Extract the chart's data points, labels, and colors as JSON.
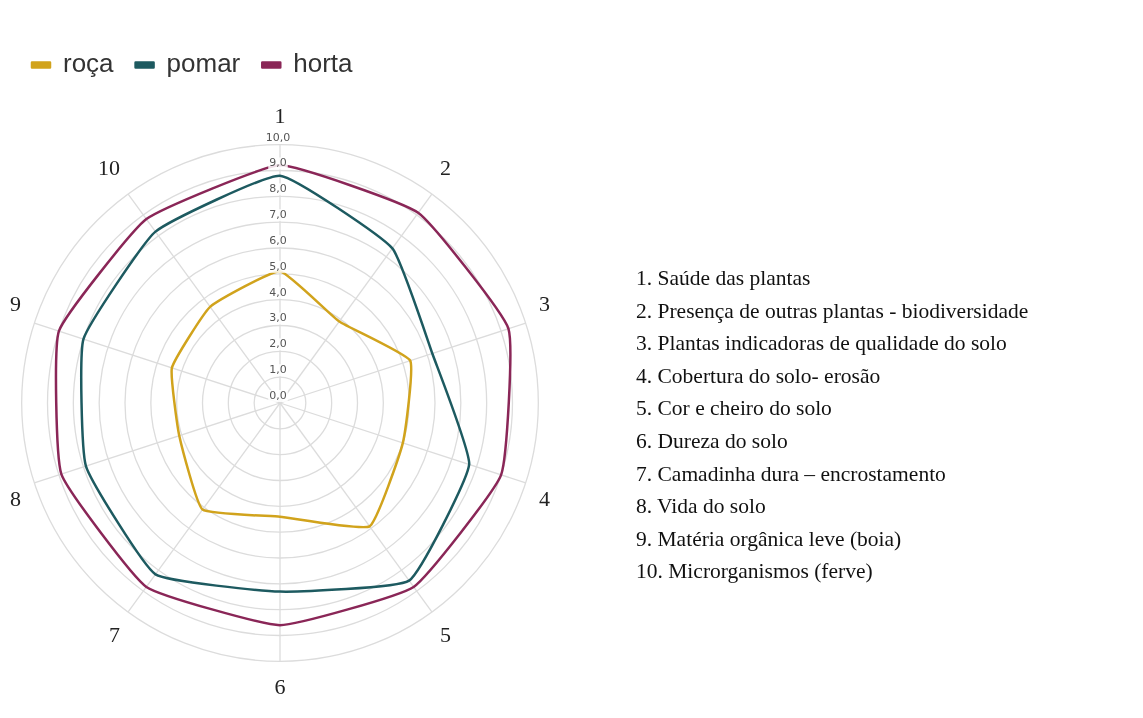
{
  "chart_data": {
    "type": "radar",
    "categories": [
      "1",
      "2",
      "3",
      "4",
      "5",
      "6",
      "7",
      "8",
      "9",
      "10"
    ],
    "series": [
      {
        "name": "roça",
        "color": "#d1a31c",
        "values": [
          5.1,
          3.9,
          5.3,
          5.0,
          5.9,
          4.4,
          5.1,
          4.1,
          4.4,
          4.6
        ]
      },
      {
        "name": "pomar",
        "color": "#1d5a60",
        "values": [
          8.8,
          7.4,
          6.2,
          7.7,
          8.5,
          7.3,
          8.2,
          7.9,
          8.0,
          8.2
        ]
      },
      {
        "name": "horta",
        "color": "#8a2657",
        "values": [
          9.2,
          9.1,
          9.3,
          9.0,
          8.8,
          8.6,
          8.8,
          8.9,
          9.0,
          8.8
        ]
      }
    ],
    "ylim": [
      0,
      10
    ],
    "yticks": [
      {
        "value": 0,
        "label": "0,0"
      },
      {
        "value": 1,
        "label": "1,0"
      },
      {
        "value": 2,
        "label": "2,0"
      },
      {
        "value": 3,
        "label": "3,0"
      },
      {
        "value": 4,
        "label": "4,0"
      },
      {
        "value": 5,
        "label": "5,0"
      },
      {
        "value": 6,
        "label": "6,0"
      },
      {
        "value": 7,
        "label": "7,0"
      },
      {
        "value": 8,
        "label": "8,0"
      },
      {
        "value": 9,
        "label": "9,0"
      },
      {
        "value": 10,
        "label": "10,0"
      }
    ],
    "grid": true,
    "legend": "top left",
    "marker": "none",
    "line_style": "solid",
    "annotations": [
      "1. Saúde das plantas",
      "2. Presença de outras plantas - biodiversidade",
      "3. Plantas indicadoras de qualidade do solo",
      "4. Cobertura do solo- erosão",
      "5. Cor e cheiro do solo",
      "6. Dureza do solo",
      "7. Camadinha dura – encrostamento",
      "8. Vida do solo",
      "9. Matéria orgânica leve (boia)",
      "10. Microrganismos (ferve)"
    ]
  }
}
